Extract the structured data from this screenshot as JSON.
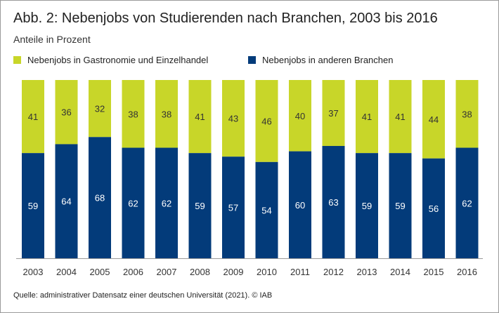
{
  "title": "Abb. 2: Nebenjobs von Studierenden nach Branchen, 2003 bis 2016",
  "subtitle": "Anteile in Prozent",
  "source": "Quelle: administrativer Datensatz einer deutschen Universität (2021). © IAB",
  "colors": {
    "gastro": "#c8d629",
    "andere": "#033b7a",
    "label_on_gastro": "#333333",
    "label_on_andere": "#ffffff",
    "axis": "#333333"
  },
  "chart_data": {
    "type": "bar",
    "stacked": true,
    "title": "Abb. 2: Nebenjobs von Studierenden nach Branchen, 2003 bis 2016",
    "subtitle": "Anteile in Prozent",
    "categories": [
      "2003",
      "2004",
      "2005",
      "2006",
      "2007",
      "2008",
      "2009",
      "2010",
      "2011",
      "2012",
      "2013",
      "2014",
      "2015",
      "2016"
    ],
    "series": [
      {
        "name": "Nebenjobs in anderen Branchen",
        "values": [
          59,
          64,
          68,
          62,
          62,
          59,
          57,
          54,
          60,
          63,
          59,
          59,
          56,
          62
        ]
      },
      {
        "name": "Nebenjobs in Gastronomie und Einzelhandel",
        "values": [
          41,
          36,
          32,
          38,
          38,
          41,
          43,
          46,
          40,
          37,
          41,
          41,
          44,
          38
        ]
      }
    ],
    "ylim": [
      0,
      100
    ],
    "xlabel": "",
    "ylabel": "",
    "grid": false,
    "legend": "top"
  }
}
